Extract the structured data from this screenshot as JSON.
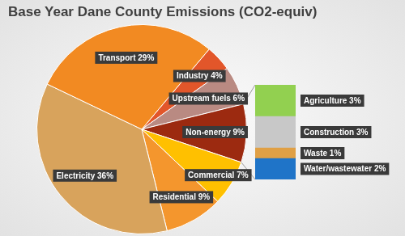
{
  "chart_data": [
    {
      "type": "pie",
      "title": "Base Year Dane County Emissions (CO2-equiv)",
      "categories": [
        "Industry",
        "Upstream fuels",
        "Non-energy",
        "Commercial",
        "Residential",
        "Electricity",
        "Transport"
      ],
      "values": [
        4,
        6,
        9,
        7,
        9,
        36,
        29
      ],
      "value_labels": [
        "Industry 4%",
        "Upstream fuels 6%",
        "Non-energy 9%",
        "Commercial 7%",
        "Residential 9%",
        "Electricity 36%",
        "Transport 29%"
      ],
      "colors": [
        "#e2562a",
        "#b98a82",
        "#9c2a10",
        "#ffc000",
        "#f4962d",
        "#d8a35c",
        "#f28a22"
      ],
      "data_labels": true
    },
    {
      "type": "bar",
      "categories": [
        null
      ],
      "series": [
        {
          "name": "Water/wastewater",
          "color": "#1f74c8",
          "values": [
            2
          ],
          "value_labels": [
            "Water/wastewater 2%"
          ]
        },
        {
          "name": "Waste",
          "color": "#e0a045",
          "values": [
            1
          ],
          "value_labels": [
            "Waste 1%"
          ]
        },
        {
          "name": "Construction",
          "color": "#c8c8c8",
          "values": [
            3
          ],
          "value_labels": [
            "Construction 3%"
          ]
        },
        {
          "name": "Agriculture",
          "color": "#92d050",
          "values": [
            3
          ],
          "value_labels": [
            "Agriculture 3%"
          ]
        }
      ],
      "ylim": [
        0,
        9
      ],
      "stacked": true,
      "tick_labels": false,
      "data_labels": true
    }
  ]
}
